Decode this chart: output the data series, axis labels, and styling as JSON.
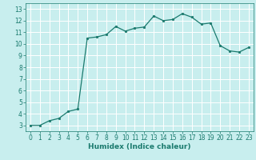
{
  "x": [
    0,
    1,
    2,
    3,
    4,
    5,
    6,
    7,
    8,
    9,
    10,
    11,
    12,
    13,
    14,
    15,
    16,
    17,
    18,
    19,
    20,
    21,
    22,
    23
  ],
  "y": [
    3.0,
    3.0,
    3.4,
    3.6,
    4.2,
    4.4,
    10.5,
    10.6,
    10.8,
    11.5,
    11.1,
    11.35,
    11.45,
    12.4,
    12.0,
    12.1,
    12.6,
    12.3,
    11.7,
    11.8,
    9.85,
    9.4,
    9.3,
    9.7
  ],
  "line_color": "#1a7a6e",
  "marker": "o",
  "marker_size": 1.8,
  "linewidth": 0.9,
  "xlabel": "Humidex (Indice chaleur)",
  "xlim": [
    -0.5,
    23.5
  ],
  "ylim": [
    2.5,
    13.5
  ],
  "yticks": [
    3,
    4,
    5,
    6,
    7,
    8,
    9,
    10,
    11,
    12,
    13
  ],
  "xticks": [
    0,
    1,
    2,
    3,
    4,
    5,
    6,
    7,
    8,
    9,
    10,
    11,
    12,
    13,
    14,
    15,
    16,
    17,
    18,
    19,
    20,
    21,
    22,
    23
  ],
  "bg_color": "#c8eeee",
  "grid_color": "#ffffff",
  "line_label_color": "#1a7a6e",
  "xlabel_fontsize": 6.5,
  "tick_fontsize": 5.5
}
